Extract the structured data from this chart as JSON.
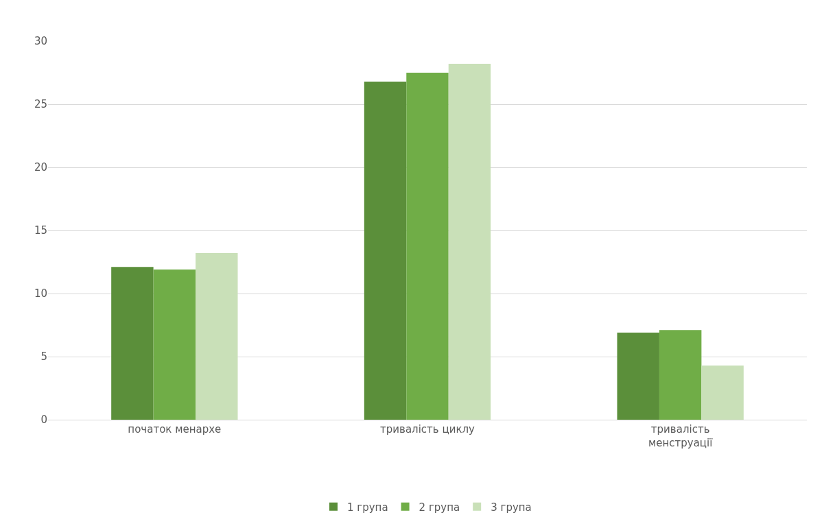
{
  "chart_data": {
    "type": "bar",
    "categories": [
      "початок менархе",
      "тривалість циклу",
      "тривалість\nменструації"
    ],
    "series": [
      {
        "name": "1 група",
        "color": "#5b8f3a",
        "values": [
          12.1,
          26.8,
          6.9
        ]
      },
      {
        "name": "2 група",
        "color": "#70ad47",
        "values": [
          11.9,
          27.5,
          7.1
        ]
      },
      {
        "name": "3 група",
        "color": "#c9e0b8",
        "values": [
          13.2,
          28.2,
          4.3
        ]
      }
    ],
    "ylim": [
      0,
      30
    ],
    "yticks": [
      0,
      5,
      10,
      15,
      20,
      25,
      30
    ],
    "grid": "y",
    "legend": "bottom"
  }
}
